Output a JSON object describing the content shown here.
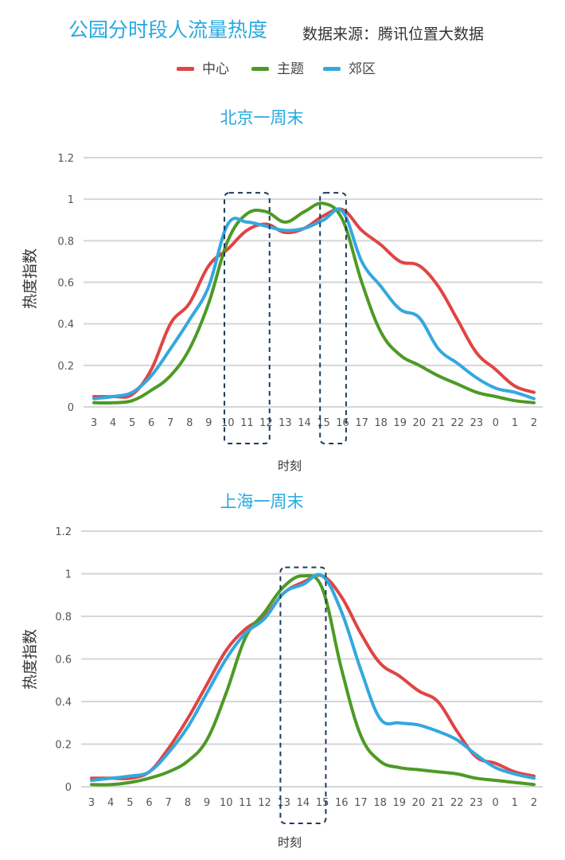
{
  "header": {
    "title": "公园分时段人流量热度",
    "source": "数据来源：腾讯位置大数据"
  },
  "legend": [
    {
      "name": "中心",
      "color": "#e04444"
    },
    {
      "name": "主题",
      "color": "#4d9a25"
    },
    {
      "name": "郊区",
      "color": "#33a8df"
    }
  ],
  "chart_data": [
    {
      "type": "line",
      "title": "北京一周末",
      "xlabel": "时刻",
      "ylabel": "热度指数",
      "categories": [
        "3",
        "4",
        "5",
        "6",
        "7",
        "8",
        "9",
        "10",
        "11",
        "12",
        "13",
        "14",
        "15",
        "16",
        "17",
        "18",
        "19",
        "20",
        "21",
        "22",
        "23",
        "0",
        "1",
        "2"
      ],
      "ylim": [
        0,
        1.2
      ],
      "yticks": [
        "0",
        "0.2",
        "0.4",
        "0.6",
        "0.8",
        "1",
        "1.2"
      ],
      "grid": true,
      "highlight_ranges": [
        [
          "10",
          "12"
        ],
        [
          "15",
          "16"
        ]
      ],
      "series": [
        {
          "name": "中心",
          "color": "#e04444",
          "values": [
            0.05,
            0.05,
            0.06,
            0.18,
            0.4,
            0.5,
            0.68,
            0.76,
            0.85,
            0.88,
            0.84,
            0.86,
            0.92,
            0.95,
            0.85,
            0.78,
            0.7,
            0.68,
            0.58,
            0.42,
            0.26,
            0.18,
            0.1,
            0.07
          ]
        },
        {
          "name": "主题",
          "color": "#4d9a25",
          "values": [
            0.02,
            0.02,
            0.03,
            0.08,
            0.15,
            0.28,
            0.5,
            0.8,
            0.93,
            0.94,
            0.89,
            0.94,
            0.98,
            0.9,
            0.6,
            0.36,
            0.25,
            0.2,
            0.15,
            0.11,
            0.07,
            0.05,
            0.03,
            0.02
          ]
        },
        {
          "name": "郊区",
          "color": "#33a8df",
          "values": [
            0.04,
            0.05,
            0.07,
            0.15,
            0.28,
            0.42,
            0.58,
            0.88,
            0.89,
            0.87,
            0.85,
            0.86,
            0.9,
            0.94,
            0.7,
            0.58,
            0.47,
            0.43,
            0.28,
            0.21,
            0.14,
            0.09,
            0.07,
            0.04
          ]
        }
      ]
    },
    {
      "type": "line",
      "title": "上海一周末",
      "xlabel": "时刻",
      "ylabel": "热度指数",
      "categories": [
        "3",
        "4",
        "5",
        "6",
        "7",
        "8",
        "9",
        "10",
        "11",
        "12",
        "13",
        "14",
        "15",
        "16",
        "17",
        "18",
        "19",
        "20",
        "21",
        "22",
        "23",
        "0",
        "1",
        "2"
      ],
      "ylim": [
        0,
        1.2
      ],
      "yticks": [
        "0",
        "0.2",
        "0.4",
        "0.6",
        "0.8",
        "1",
        "1.2"
      ],
      "grid": true,
      "highlight_ranges": [
        [
          "13",
          "15"
        ]
      ],
      "series": [
        {
          "name": "中心",
          "color": "#e04444",
          "values": [
            0.04,
            0.04,
            0.04,
            0.07,
            0.18,
            0.32,
            0.48,
            0.64,
            0.74,
            0.8,
            0.91,
            0.96,
            0.99,
            0.89,
            0.72,
            0.58,
            0.52,
            0.45,
            0.4,
            0.26,
            0.14,
            0.11,
            0.07,
            0.05
          ]
        },
        {
          "name": "主题",
          "color": "#4d9a25",
          "values": [
            0.01,
            0.01,
            0.02,
            0.04,
            0.07,
            0.12,
            0.22,
            0.44,
            0.7,
            0.82,
            0.94,
            0.99,
            0.93,
            0.55,
            0.24,
            0.12,
            0.09,
            0.08,
            0.07,
            0.06,
            0.04,
            0.03,
            0.02,
            0.01
          ]
        },
        {
          "name": "郊区",
          "color": "#33a8df",
          "values": [
            0.03,
            0.04,
            0.05,
            0.07,
            0.16,
            0.28,
            0.44,
            0.6,
            0.72,
            0.79,
            0.91,
            0.95,
            0.99,
            0.82,
            0.55,
            0.32,
            0.3,
            0.29,
            0.26,
            0.22,
            0.15,
            0.09,
            0.06,
            0.04
          ]
        }
      ]
    }
  ]
}
